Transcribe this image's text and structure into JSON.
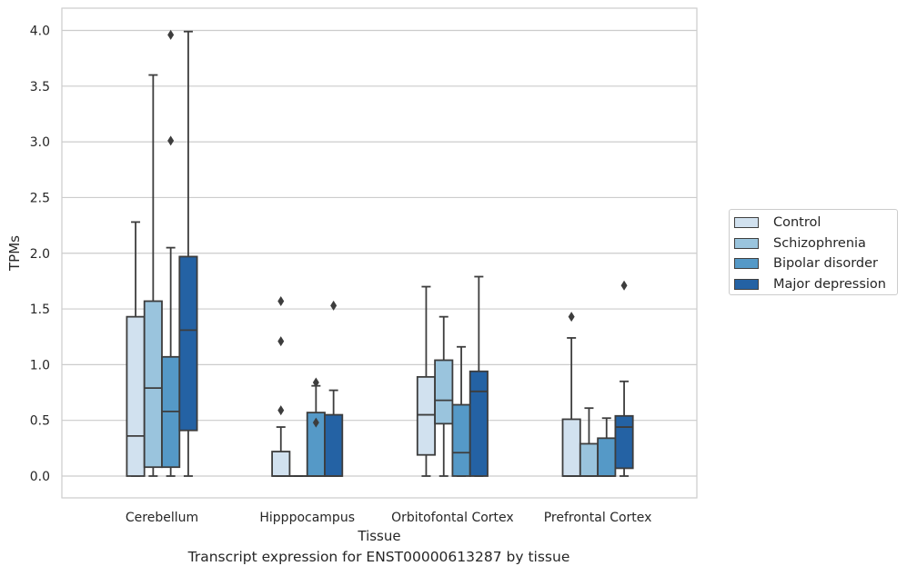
{
  "chart_data": {
    "type": "box",
    "title": "",
    "caption": "Transcript expression for ENST00000613287 by tissue",
    "xlabel": "Tissue",
    "ylabel": "TPMs",
    "ylim": [
      -0.2,
      4.2
    ],
    "yticks": [
      0.0,
      0.5,
      1.0,
      1.5,
      2.0,
      2.5,
      3.0,
      3.5,
      4.0
    ],
    "ytick_labels": [
      "0.0",
      "0.5",
      "1.0",
      "1.5",
      "2.0",
      "2.5",
      "3.0",
      "3.5",
      "4.0"
    ],
    "grid": "horizontal",
    "legend_position": "right",
    "categories": [
      "Cerebellum",
      "Hipppocampus",
      "Orbitofontal Cortex",
      "Prefrontal Cortex"
    ],
    "series": [
      {
        "name": "Control",
        "color": "#d1e1ef",
        "boxes": [
          {
            "whisker_low": 0.0,
            "q1": 0.0,
            "median": 0.36,
            "q3": 1.43,
            "whisker_high": 2.28,
            "outliers": []
          },
          {
            "whisker_low": 0.0,
            "q1": 0.0,
            "median": 0.0,
            "q3": 0.22,
            "whisker_high": 0.44,
            "outliers": [
              0.59,
              1.21,
              1.57
            ]
          },
          {
            "whisker_low": 0.0,
            "q1": 0.19,
            "median": 0.55,
            "q3": 0.89,
            "whisker_high": 1.7,
            "outliers": []
          },
          {
            "whisker_low": 0.0,
            "q1": 0.0,
            "median": 0.0,
            "q3": 0.51,
            "whisker_high": 1.24,
            "outliers": [
              1.43
            ]
          }
        ]
      },
      {
        "name": "Schizophrenia",
        "color": "#9ac4dd",
        "boxes": [
          {
            "whisker_low": 0.0,
            "q1": 0.08,
            "median": 0.79,
            "q3": 1.57,
            "whisker_high": 3.6,
            "outliers": []
          },
          {
            "whisker_low": 0.0,
            "q1": 0.0,
            "median": 0.0,
            "q3": 0.0,
            "whisker_high": 0.0,
            "outliers": []
          },
          {
            "whisker_low": 0.0,
            "q1": 0.47,
            "median": 0.68,
            "q3": 1.04,
            "whisker_high": 1.43,
            "outliers": []
          },
          {
            "whisker_low": 0.0,
            "q1": 0.0,
            "median": 0.0,
            "q3": 0.29,
            "whisker_high": 0.61,
            "outliers": []
          }
        ]
      },
      {
        "name": "Bipolar disorder",
        "color": "#5599c7",
        "boxes": [
          {
            "whisker_low": 0.0,
            "q1": 0.08,
            "median": 0.58,
            "q3": 1.07,
            "whisker_high": 2.05,
            "outliers": [
              3.01,
              3.96
            ]
          },
          {
            "whisker_low": 0.0,
            "q1": 0.0,
            "median": 0.0,
            "q3": 0.57,
            "whisker_high": 0.81,
            "outliers": [
              0.48,
              0.84
            ]
          },
          {
            "whisker_low": 0.0,
            "q1": 0.0,
            "median": 0.21,
            "q3": 0.64,
            "whisker_high": 1.16,
            "outliers": []
          },
          {
            "whisker_low": 0.0,
            "q1": 0.0,
            "median": 0.0,
            "q3": 0.34,
            "whisker_high": 0.52,
            "outliers": []
          }
        ]
      },
      {
        "name": "Major depression",
        "color": "#2462a4",
        "boxes": [
          {
            "whisker_low": 0.0,
            "q1": 0.41,
            "median": 1.31,
            "q3": 1.97,
            "whisker_high": 3.99,
            "outliers": []
          },
          {
            "whisker_low": 0.0,
            "q1": 0.0,
            "median": 0.0,
            "q3": 0.55,
            "whisker_high": 0.77,
            "outliers": [
              1.53
            ]
          },
          {
            "whisker_low": 0.0,
            "q1": 0.0,
            "median": 0.76,
            "q3": 0.94,
            "whisker_high": 1.79,
            "outliers": []
          },
          {
            "whisker_low": 0.0,
            "q1": 0.07,
            "median": 0.44,
            "q3": 0.54,
            "whisker_high": 0.85,
            "outliers": [
              1.71
            ]
          }
        ]
      }
    ]
  }
}
